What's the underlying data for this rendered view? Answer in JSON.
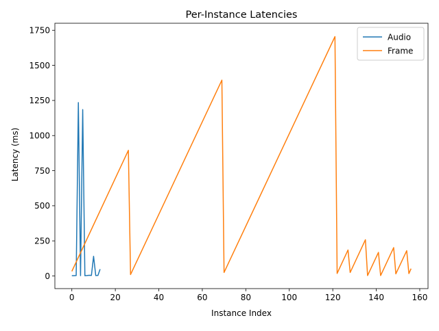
{
  "chart_data": {
    "type": "line",
    "title": "Per-Instance Latencies",
    "xlabel": "Instance Index",
    "ylabel": "Latency (ms)",
    "xlim": [
      -7.8,
      163.8
    ],
    "ylim": [
      -90,
      1800
    ],
    "xticks": [
      0,
      20,
      40,
      60,
      80,
      100,
      120,
      140,
      160
    ],
    "yticks": [
      0,
      250,
      500,
      750,
      1000,
      1250,
      1500,
      1750
    ],
    "grid": false,
    "legend_position": "upper right",
    "series": [
      {
        "name": "Audio",
        "color": "#1f77b4",
        "points": [
          [
            0,
            2
          ],
          [
            1,
            2
          ],
          [
            2,
            3
          ],
          [
            3,
            1235
          ],
          [
            4,
            2
          ],
          [
            5,
            1185
          ],
          [
            6,
            2
          ],
          [
            7,
            3
          ],
          [
            8,
            5
          ],
          [
            9,
            4
          ],
          [
            10,
            140
          ],
          [
            11,
            3
          ],
          [
            12,
            4
          ],
          [
            13,
            48
          ]
        ]
      },
      {
        "name": "Frame",
        "color": "#ff7f0e",
        "points": [
          [
            0,
            33
          ],
          [
            26,
            895
          ],
          [
            27,
            10
          ],
          [
            69,
            1395
          ],
          [
            70,
            25
          ],
          [
            121,
            1705
          ],
          [
            122,
            18
          ],
          [
            127,
            185
          ],
          [
            128,
            25
          ],
          [
            135,
            258
          ],
          [
            136,
            3
          ],
          [
            141,
            168
          ],
          [
            142,
            3
          ],
          [
            148,
            202
          ],
          [
            149,
            15
          ],
          [
            154,
            180
          ],
          [
            155,
            17
          ],
          [
            156,
            52
          ]
        ]
      }
    ]
  }
}
